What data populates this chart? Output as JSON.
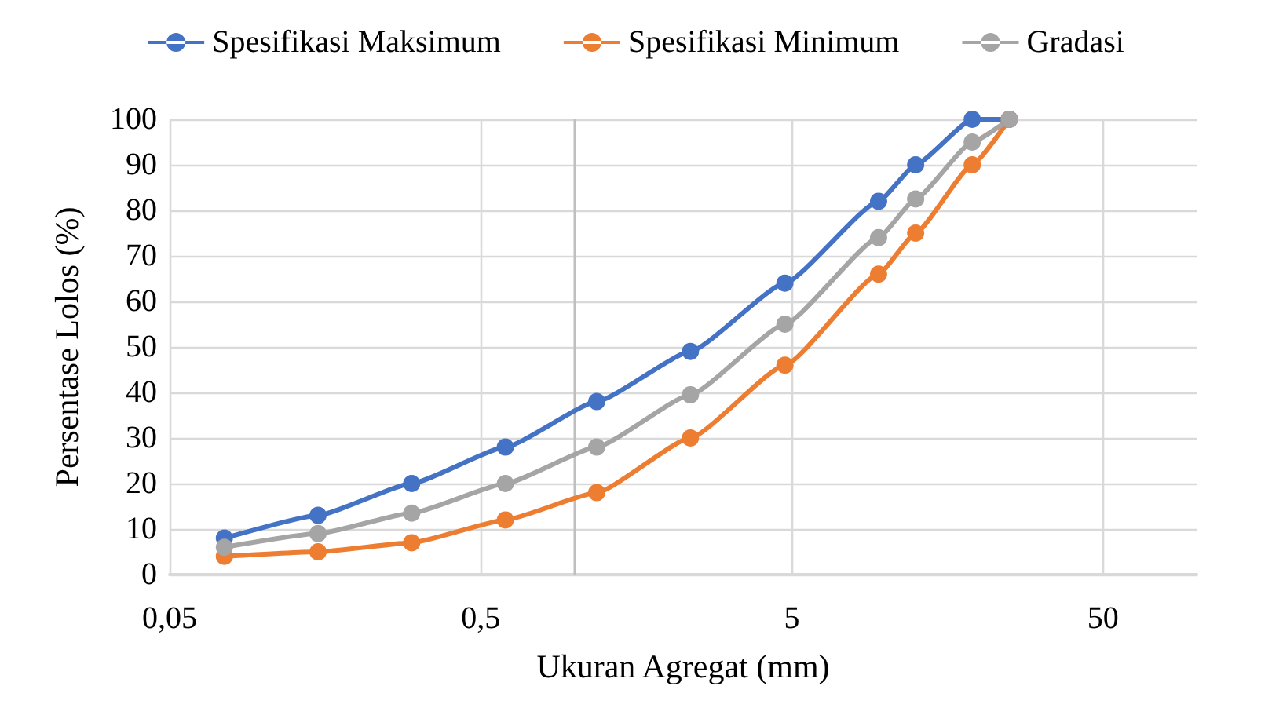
{
  "chart_data": {
    "type": "line",
    "xlabel": "Ukuran Agregat (mm)",
    "ylabel": "Persentase Lolos (%)",
    "x": [
      0.075,
      0.15,
      0.3,
      0.6,
      1.18,
      2.36,
      4.75,
      9.5,
      12.5,
      19,
      25
    ],
    "series": [
      {
        "name": "Spesifikasi Maksimum",
        "color": "#4472c4",
        "values": [
          8,
          13,
          20,
          28,
          38,
          49,
          64,
          82,
          90,
          100,
          100
        ]
      },
      {
        "name": "Spesifikasi Minimum",
        "color": "#ed7d31",
        "values": [
          4,
          5,
          7,
          12,
          18,
          30,
          46,
          66,
          75,
          90,
          100
        ]
      },
      {
        "name": "Gradasi",
        "color": "#a5a5a5",
        "values": [
          6,
          9,
          13.5,
          20,
          28,
          39.5,
          55,
          74,
          82.5,
          95,
          100
        ]
      }
    ],
    "log": "x",
    "xlim": [
      0.05,
      100
    ],
    "xticks": [
      {
        "value": 0.05,
        "label": "0,05"
      },
      {
        "value": 0.5,
        "label": "0,5"
      },
      {
        "value": 5,
        "label": "5"
      },
      {
        "value": 50,
        "label": "50"
      }
    ],
    "ylim": [
      0,
      100
    ],
    "yticks": [
      0,
      10,
      20,
      30,
      40,
      50,
      60,
      70,
      80,
      90,
      100
    ],
    "ref_lines": [
      {
        "axis": "x",
        "value": 1,
        "color": "#bfbfbf"
      }
    ],
    "grid": true,
    "legend": "top",
    "marker": "circle",
    "line_style": "solid"
  }
}
